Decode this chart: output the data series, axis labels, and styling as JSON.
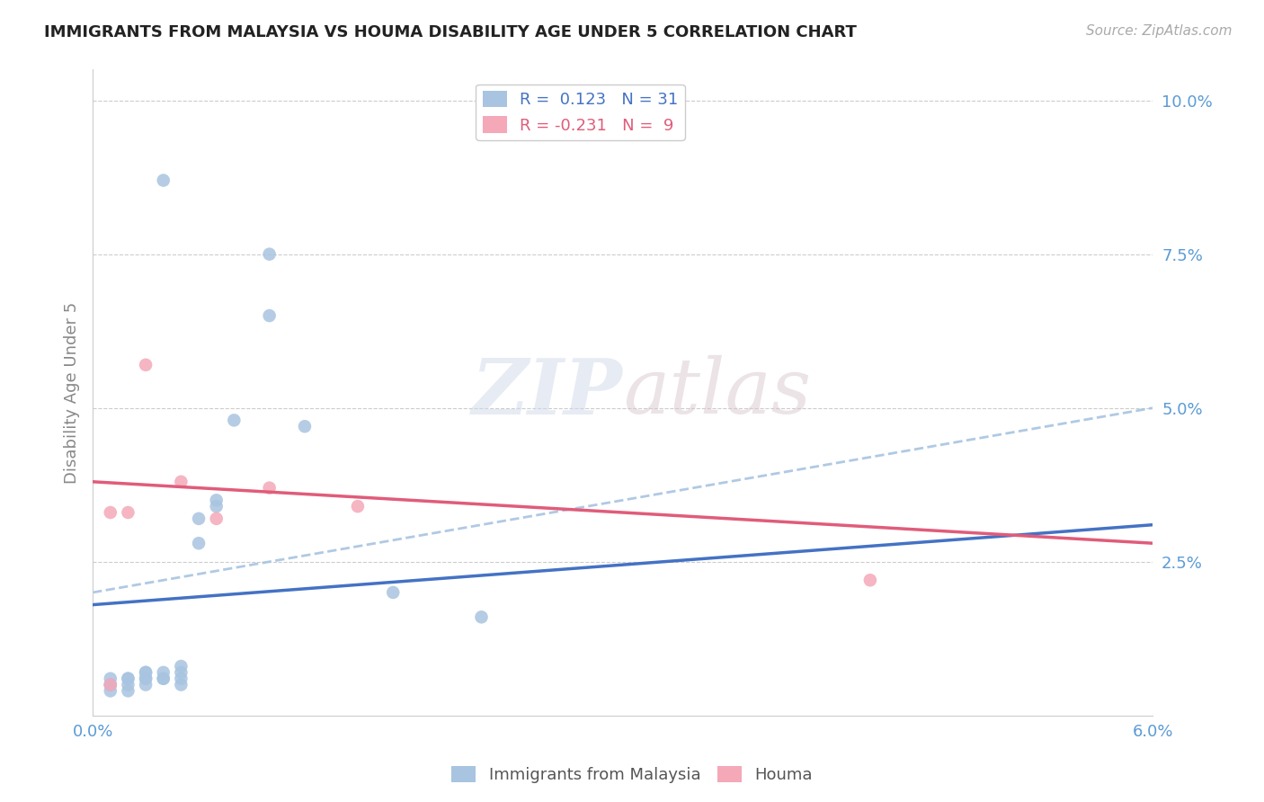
{
  "title": "IMMIGRANTS FROM MALAYSIA VS HOUMA DISABILITY AGE UNDER 5 CORRELATION CHART",
  "source_text": "Source: ZipAtlas.com",
  "xlabel": "",
  "ylabel": "Disability Age Under 5",
  "xlim": [
    0.0,
    0.06
  ],
  "ylim": [
    0.0,
    0.105
  ],
  "xticks": [
    0.0,
    0.01,
    0.02,
    0.03,
    0.04,
    0.05,
    0.06
  ],
  "xticklabels": [
    "0.0%",
    "",
    "",
    "",
    "",
    "",
    "6.0%"
  ],
  "yticks": [
    0.0,
    0.025,
    0.05,
    0.075,
    0.1
  ],
  "yticklabels": [
    "",
    "2.5%",
    "5.0%",
    "7.5%",
    "10.0%"
  ],
  "blue_R": 0.123,
  "blue_N": 31,
  "pink_R": -0.231,
  "pink_N": 9,
  "blue_scatter_x": [
    0.001,
    0.001,
    0.001,
    0.001,
    0.002,
    0.002,
    0.002,
    0.002,
    0.003,
    0.003,
    0.003,
    0.003,
    0.003,
    0.004,
    0.004,
    0.004,
    0.005,
    0.005,
    0.005,
    0.005,
    0.006,
    0.006,
    0.007,
    0.007,
    0.008,
    0.01,
    0.01,
    0.012,
    0.017,
    0.022,
    0.004
  ],
  "blue_scatter_y": [
    0.004,
    0.005,
    0.005,
    0.006,
    0.004,
    0.005,
    0.006,
    0.006,
    0.005,
    0.006,
    0.006,
    0.007,
    0.007,
    0.006,
    0.006,
    0.007,
    0.005,
    0.006,
    0.007,
    0.008,
    0.028,
    0.032,
    0.034,
    0.035,
    0.048,
    0.065,
    0.075,
    0.047,
    0.02,
    0.016,
    0.087
  ],
  "pink_scatter_x": [
    0.001,
    0.001,
    0.002,
    0.003,
    0.005,
    0.007,
    0.01,
    0.015,
    0.044
  ],
  "pink_scatter_y": [
    0.005,
    0.033,
    0.033,
    0.057,
    0.038,
    0.032,
    0.037,
    0.034,
    0.022
  ],
  "blue_solid_line_x": [
    0.0,
    0.06
  ],
  "blue_solid_line_y": [
    0.018,
    0.031
  ],
  "pink_solid_line_x": [
    0.0,
    0.06
  ],
  "pink_solid_line_y": [
    0.038,
    0.028
  ],
  "blue_dashed_line_x": [
    0.0,
    0.06
  ],
  "blue_dashed_line_y": [
    0.02,
    0.05
  ],
  "blue_scatter_color": "#a8c4e0",
  "pink_scatter_color": "#f4a8b8",
  "blue_solid_color": "#4472c4",
  "pink_solid_color": "#e05c7a",
  "blue_dashed_color": "#a8c4e0",
  "background_color": "#ffffff",
  "grid_color": "#cccccc",
  "title_color": "#222222",
  "axis_color": "#5b9bd5",
  "legend_blue_label": "Immigrants from Malaysia",
  "legend_pink_label": "Houma"
}
